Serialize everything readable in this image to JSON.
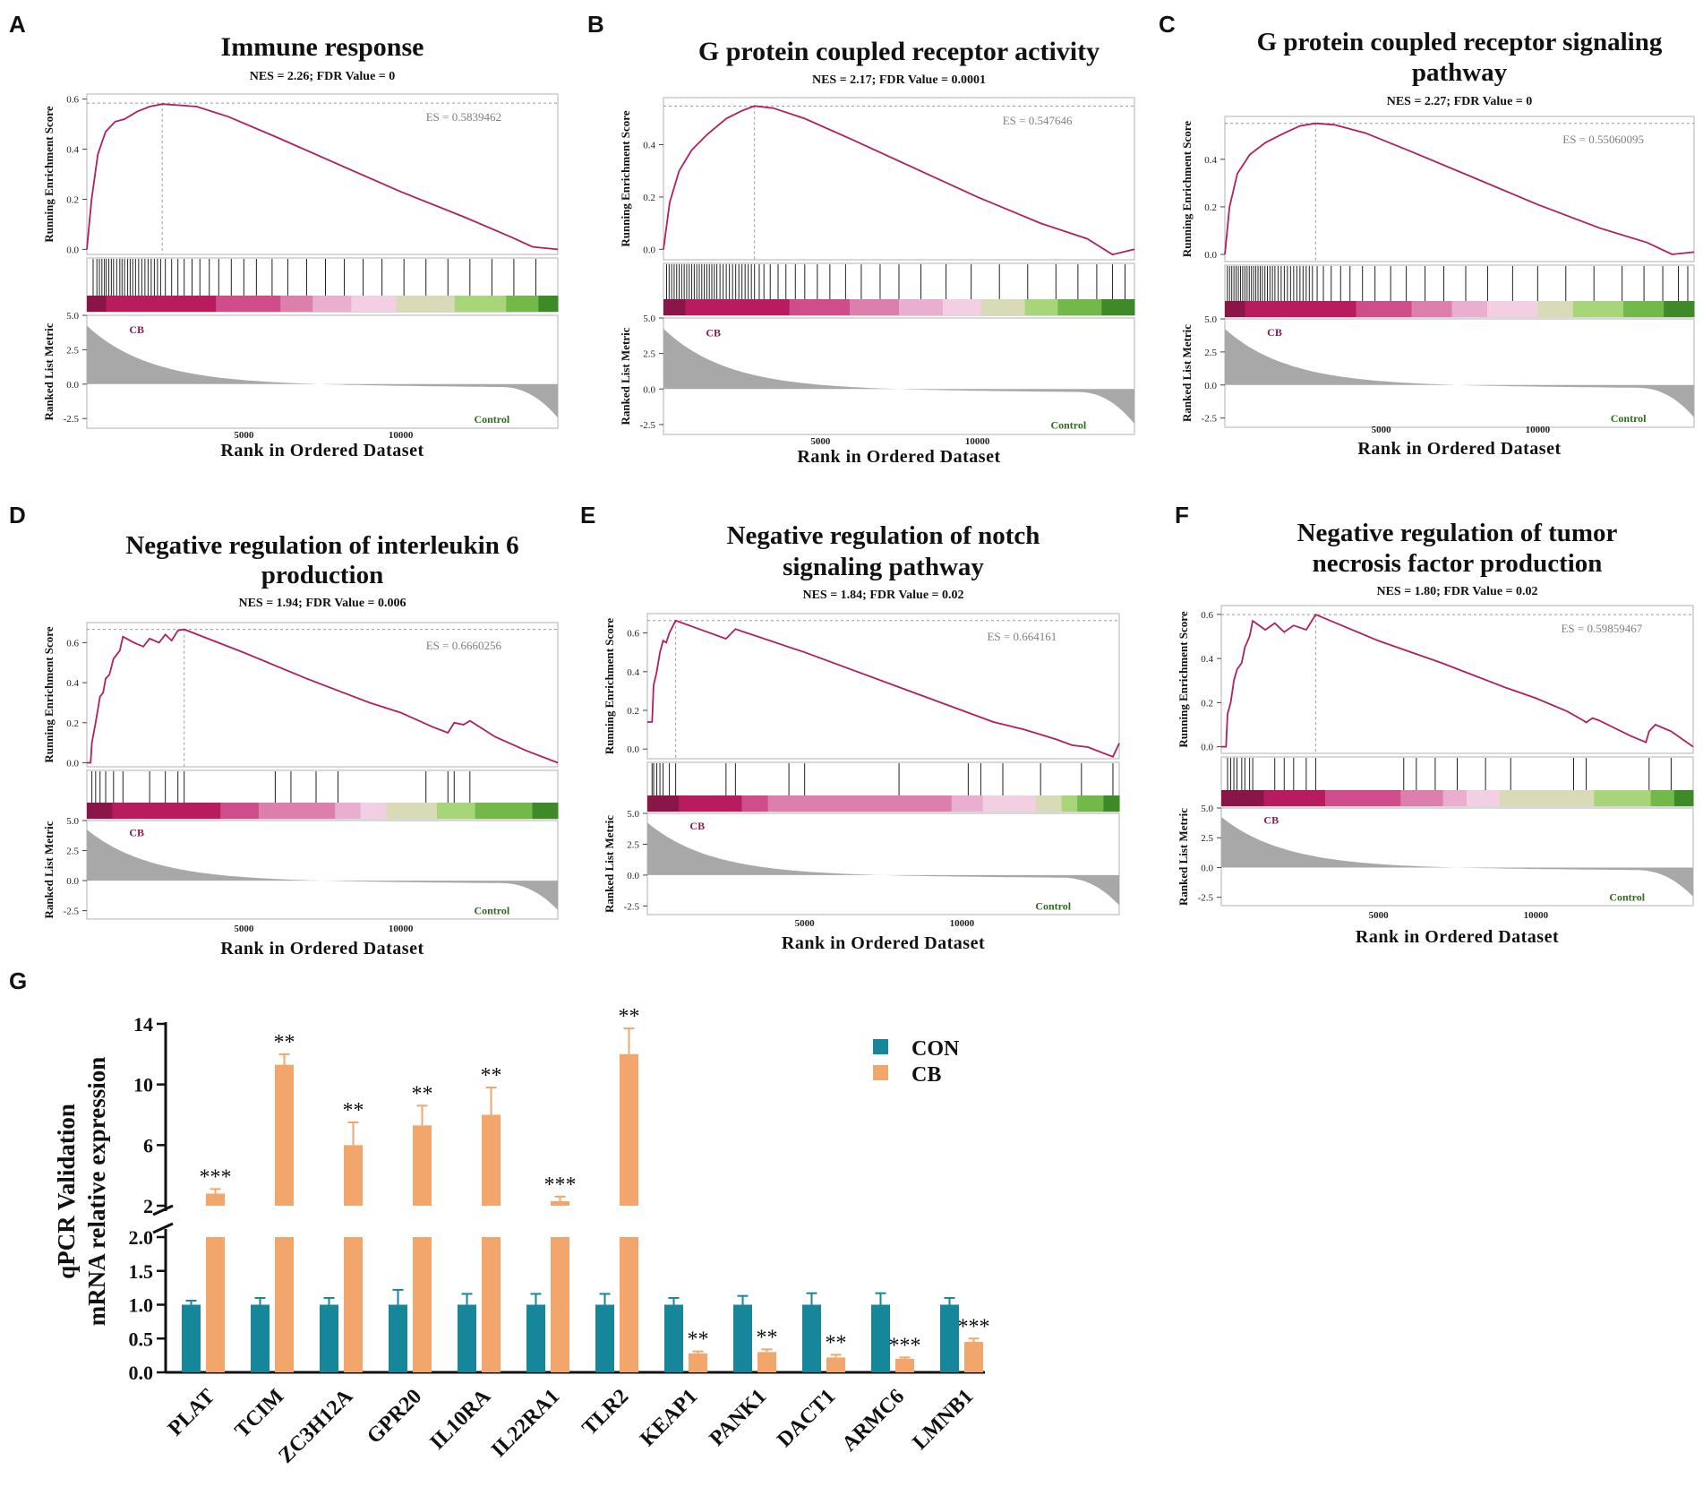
{
  "colors": {
    "curve": "#b01f63",
    "cb_label": "#8c1a4d",
    "control_label": "#2e6b1e",
    "metric_fill": "#a8a8a8",
    "es_text": "#7f7f7f",
    "con_bar": "#16869a",
    "cb_bar": "#f2a66c",
    "heat": [
      "#8a1548",
      "#b81c5e",
      "#cf4d8a",
      "#dd7fad",
      "#eaaed0",
      "#f3cfe3",
      "#d9dbb8",
      "#a8d47a",
      "#72b94a",
      "#3e8a29"
    ]
  },
  "shared": {
    "xlabel": "Rank in Ordered Dataset",
    "ylabel_top": "Running Enrichment Score",
    "ylabel_top_cropped": "Running Enrichment Score",
    "ylabel_bottom": "Ranked List Metric",
    "cb_label": "CB",
    "control_label": "Control",
    "x_ticks": [
      "5000",
      "10000"
    ],
    "metric_ticks": [
      "5.0",
      "2.5",
      "0.0",
      "-2.5"
    ]
  },
  "chart_data": [
    {
      "panel": "A",
      "type": "line",
      "title": "Immune response",
      "subtitle": "NES = 2.26; FDR Value = 0",
      "es_label": "ES = 0.5839462",
      "es": 0.584,
      "es_rank": 2400,
      "n": 15000,
      "ylim": [
        -0.02,
        0.62
      ],
      "yticks": [
        "0.0",
        "0.2",
        "0.4",
        "0.6"
      ],
      "curve": [
        [
          0,
          0.0
        ],
        [
          150,
          0.2
        ],
        [
          350,
          0.38
        ],
        [
          600,
          0.47
        ],
        [
          900,
          0.51
        ],
        [
          1200,
          0.52
        ],
        [
          1600,
          0.55
        ],
        [
          2000,
          0.57
        ],
        [
          2400,
          0.58
        ],
        [
          3000,
          0.575
        ],
        [
          3500,
          0.57
        ],
        [
          4500,
          0.53
        ],
        [
          6000,
          0.45
        ],
        [
          8000,
          0.34
        ],
        [
          10000,
          0.23
        ],
        [
          12000,
          0.13
        ],
        [
          13500,
          0.05
        ],
        [
          14200,
          0.01
        ],
        [
          15000,
          0.0
        ]
      ],
      "hits": [
        200,
        320,
        400,
        480,
        560,
        620,
        700,
        780,
        850,
        950,
        1050,
        1120,
        1200,
        1300,
        1380,
        1460,
        1550,
        1650,
        1750,
        1850,
        1950,
        2050,
        2150,
        2250,
        2350,
        2500,
        2700,
        2900,
        3100,
        3350,
        3600,
        3900,
        4200,
        4600,
        5000,
        5400,
        5900,
        6400,
        7000,
        7600,
        8200,
        8800,
        9400,
        10100,
        10800,
        11500,
        12200,
        12900,
        13600,
        14300
      ],
      "heat_widths": [
        3,
        17,
        10,
        5,
        6,
        7,
        9,
        8,
        5,
        3
      ]
    },
    {
      "panel": "B",
      "type": "line",
      "title": "G protein coupled receptor activity",
      "subtitle": "NES = 2.17; FDR Value = 0.0001",
      "es_label": "ES = 0.547646",
      "es": 0.548,
      "es_rank": 2900,
      "n": 15000,
      "ylim": [
        -0.04,
        0.58
      ],
      "yticks": [
        "0.0",
        "0.2",
        "0.4"
      ],
      "curve": [
        [
          0,
          0.0
        ],
        [
          200,
          0.18
        ],
        [
          500,
          0.3
        ],
        [
          900,
          0.38
        ],
        [
          1400,
          0.44
        ],
        [
          2000,
          0.5
        ],
        [
          2500,
          0.53
        ],
        [
          2900,
          0.548
        ],
        [
          3500,
          0.54
        ],
        [
          4500,
          0.5
        ],
        [
          6000,
          0.42
        ],
        [
          8000,
          0.31
        ],
        [
          10000,
          0.2
        ],
        [
          12000,
          0.1
        ],
        [
          13500,
          0.04
        ],
        [
          14300,
          -0.02
        ],
        [
          15000,
          0.0
        ]
      ],
      "hits": [
        100,
        180,
        260,
        340,
        420,
        500,
        580,
        660,
        740,
        820,
        900,
        980,
        1060,
        1140,
        1220,
        1300,
        1380,
        1460,
        1540,
        1620,
        1700,
        1800,
        1900,
        2000,
        2100,
        2200,
        2300,
        2400,
        2500,
        2600,
        2700,
        2800,
        2900,
        3050,
        3200,
        3400,
        3650,
        3900,
        4200,
        4500,
        4900,
        5300,
        5800,
        6300,
        6900,
        7500,
        8200,
        9000,
        9800,
        10700,
        11600,
        12500,
        13200,
        13800,
        14300,
        14700
      ],
      "heat_widths": [
        4,
        19,
        11,
        9,
        8,
        7,
        8,
        6,
        8,
        6
      ]
    },
    {
      "panel": "C",
      "type": "line",
      "title": "G protein coupled receptor signaling pathway",
      "subtitle": "NES = 2.27; FDR Value = 0",
      "es_label": "ES = 0.55060095",
      "es": 0.551,
      "es_rank": 2900,
      "n": 15000,
      "ylim": [
        -0.03,
        0.58
      ],
      "yticks": [
        "0.0",
        "0.2",
        "0.4"
      ],
      "curve": [
        [
          0,
          0.0
        ],
        [
          150,
          0.2
        ],
        [
          400,
          0.34
        ],
        [
          800,
          0.42
        ],
        [
          1300,
          0.47
        ],
        [
          1900,
          0.51
        ],
        [
          2400,
          0.54
        ],
        [
          2900,
          0.551
        ],
        [
          3500,
          0.545
        ],
        [
          4500,
          0.51
        ],
        [
          6000,
          0.43
        ],
        [
          8000,
          0.32
        ],
        [
          10000,
          0.21
        ],
        [
          12000,
          0.11
        ],
        [
          13500,
          0.05
        ],
        [
          14300,
          0.0
        ],
        [
          15000,
          0.01
        ]
      ],
      "hits": [
        80,
        150,
        220,
        290,
        360,
        430,
        500,
        570,
        640,
        710,
        780,
        850,
        920,
        990,
        1060,
        1130,
        1200,
        1280,
        1360,
        1440,
        1520,
        1600,
        1700,
        1800,
        1900,
        2000,
        2100,
        2200,
        2300,
        2400,
        2500,
        2600,
        2700,
        2800,
        2950,
        3150,
        3400,
        3700,
        4000,
        4400,
        4800,
        5300,
        5800,
        6400,
        7000,
        7700,
        8400,
        9200,
        10000,
        10900,
        11800,
        12700,
        13400,
        14000,
        14500,
        14800
      ],
      "heat_widths": [
        4,
        22,
        11,
        8,
        7,
        10,
        7,
        10,
        8,
        6
      ]
    },
    {
      "panel": "D",
      "type": "line",
      "title": "Negative regulation of interleukin 6 production",
      "subtitle": "NES = 1.94; FDR Value = 0.006",
      "es_label": "ES = 0.6660256",
      "es": 0.666,
      "es_rank": 3100,
      "n": 15000,
      "ylim": [
        -0.02,
        0.7
      ],
      "yticks": [
        "0.0",
        "0.2",
        "0.4",
        "0.6"
      ],
      "curve": [
        [
          0,
          0.0
        ],
        [
          120,
          0.0
        ],
        [
          160,
          0.1
        ],
        [
          280,
          0.2
        ],
        [
          420,
          0.33
        ],
        [
          520,
          0.35
        ],
        [
          600,
          0.42
        ],
        [
          720,
          0.44
        ],
        [
          850,
          0.52
        ],
        [
          1050,
          0.56
        ],
        [
          1150,
          0.63
        ],
        [
          1500,
          0.6
        ],
        [
          1800,
          0.58
        ],
        [
          2000,
          0.62
        ],
        [
          2300,
          0.6
        ],
        [
          2500,
          0.64
        ],
        [
          2700,
          0.61
        ],
        [
          2900,
          0.66
        ],
        [
          3100,
          0.666
        ],
        [
          5000,
          0.55
        ],
        [
          7000,
          0.42
        ],
        [
          9000,
          0.3
        ],
        [
          10000,
          0.25
        ],
        [
          11000,
          0.18
        ],
        [
          11500,
          0.15
        ],
        [
          11700,
          0.2
        ],
        [
          12000,
          0.19
        ],
        [
          12200,
          0.21
        ],
        [
          13000,
          0.13
        ],
        [
          14000,
          0.06
        ],
        [
          15000,
          0.0
        ]
      ],
      "hits": [
        160,
        280,
        420,
        600,
        850,
        1150,
        2000,
        2500,
        2900,
        3100,
        6000,
        6500,
        7300,
        8000,
        10800,
        11500,
        11700,
        12200
      ],
      "heat_widths": [
        4,
        17,
        6,
        12,
        4,
        4,
        8,
        6,
        9,
        4
      ]
    },
    {
      "panel": "E",
      "type": "line",
      "title": "Negative regulation of notch signaling pathway",
      "subtitle": "NES = 1.84; FDR Value = 0.02",
      "es_label": "ES = 0.664161",
      "es": 0.664,
      "es_rank": 900,
      "n": 15000,
      "ylim": [
        -0.05,
        0.7
      ],
      "yticks": [
        "0.0",
        "0.2",
        "0.4",
        "0.6"
      ],
      "curve": [
        [
          0,
          0.14
        ],
        [
          150,
          0.14
        ],
        [
          200,
          0.33
        ],
        [
          300,
          0.4
        ],
        [
          400,
          0.5
        ],
        [
          500,
          0.56
        ],
        [
          600,
          0.55
        ],
        [
          700,
          0.6
        ],
        [
          900,
          0.664
        ],
        [
          2500,
          0.57
        ],
        [
          2800,
          0.62
        ],
        [
          5000,
          0.5
        ],
        [
          8000,
          0.32
        ],
        [
          10000,
          0.2
        ],
        [
          11000,
          0.14
        ],
        [
          12000,
          0.1
        ],
        [
          13000,
          0.05
        ],
        [
          13500,
          0.02
        ],
        [
          14000,
          0.01
        ],
        [
          14800,
          -0.04
        ],
        [
          15000,
          0.03
        ]
      ],
      "hits": [
        150,
        200,
        300,
        400,
        500,
        700,
        900,
        2500,
        2800,
        4500,
        5000,
        8000,
        10200,
        10600,
        11300,
        12500,
        13800,
        14800
      ],
      "heat_widths": [
        6,
        12,
        5,
        35,
        6,
        10,
        5,
        3,
        5,
        3
      ]
    },
    {
      "panel": "F",
      "type": "line",
      "title": "Negative regulation of tumor necrosis factor production",
      "subtitle": "NES = 1.80; FDR Value = 0.02",
      "es_label": "ES = 0.59859467",
      "es": 0.599,
      "es_rank": 3000,
      "n": 15000,
      "ylim": [
        -0.03,
        0.64
      ],
      "yticks": [
        "0.0",
        "0.2",
        "0.4",
        "0.6"
      ],
      "curve": [
        [
          0,
          0.0
        ],
        [
          150,
          0.0
        ],
        [
          200,
          0.15
        ],
        [
          300,
          0.2
        ],
        [
          400,
          0.3
        ],
        [
          500,
          0.35
        ],
        [
          650,
          0.38
        ],
        [
          750,
          0.45
        ],
        [
          900,
          0.5
        ],
        [
          1000,
          0.57
        ],
        [
          1400,
          0.53
        ],
        [
          1700,
          0.56
        ],
        [
          2000,
          0.52
        ],
        [
          2300,
          0.55
        ],
        [
          2700,
          0.53
        ],
        [
          3000,
          0.599
        ],
        [
          5000,
          0.48
        ],
        [
          7000,
          0.38
        ],
        [
          9000,
          0.27
        ],
        [
          10000,
          0.22
        ],
        [
          11000,
          0.16
        ],
        [
          11500,
          0.12
        ],
        [
          11600,
          0.11
        ],
        [
          11800,
          0.13
        ],
        [
          12000,
          0.12
        ],
        [
          13000,
          0.05
        ],
        [
          13500,
          0.02
        ],
        [
          13600,
          0.07
        ],
        [
          13800,
          0.1
        ],
        [
          14300,
          0.07
        ],
        [
          15000,
          0.0
        ]
      ],
      "hits": [
        200,
        300,
        400,
        500,
        650,
        750,
        900,
        1000,
        1700,
        2000,
        2300,
        2700,
        3000,
        5800,
        6200,
        6800,
        7500,
        8400,
        9200,
        11200,
        11600,
        13600,
        14300
      ],
      "heat_widths": [
        9,
        13,
        16,
        9,
        5,
        7,
        20,
        12,
        5,
        4
      ]
    },
    {
      "panel": "G",
      "type": "bar",
      "ylabel_line1": "qPCR Validation",
      "ylabel_line2": "mRNA relative expression",
      "categories": [
        "PLAT",
        "TCIM",
        "ZC3H12A",
        "GPR20",
        "IL10RA",
        "IL22RA1",
        "TLR2",
        "KEAP1",
        "PANK1",
        "DACT1",
        "ARMC6",
        "LMNB1"
      ],
      "series": [
        {
          "name": "CON",
          "values": [
            1.0,
            1.0,
            1.0,
            1.0,
            1.0,
            1.0,
            1.0,
            1.0,
            1.0,
            1.0,
            1.0,
            1.0
          ],
          "errors": [
            0.06,
            0.1,
            0.1,
            0.22,
            0.16,
            0.16,
            0.16,
            0.1,
            0.13,
            0.17,
            0.17,
            0.1
          ]
        },
        {
          "name": "CB",
          "values": [
            2.8,
            11.3,
            6.0,
            7.3,
            8.0,
            2.3,
            12.0,
            0.28,
            0.3,
            0.22,
            0.2,
            0.45
          ],
          "errors": [
            0.3,
            0.7,
            1.5,
            1.3,
            1.8,
            0.3,
            1.7,
            0.03,
            0.04,
            0.04,
            0.02,
            0.05
          ]
        }
      ],
      "significance": [
        "***",
        "**",
        "**",
        "**",
        "**",
        "***",
        "**",
        "**",
        "**",
        "**",
        "***",
        "***"
      ],
      "y_ticks_lower": [
        "0.0",
        "0.5",
        "1.0",
        "1.5",
        "2.0"
      ],
      "y_ticks_upper": [
        "2",
        "6",
        "10",
        "14"
      ],
      "ylim_lower": [
        0,
        2.0
      ],
      "ylim_upper": [
        2,
        14
      ]
    }
  ]
}
